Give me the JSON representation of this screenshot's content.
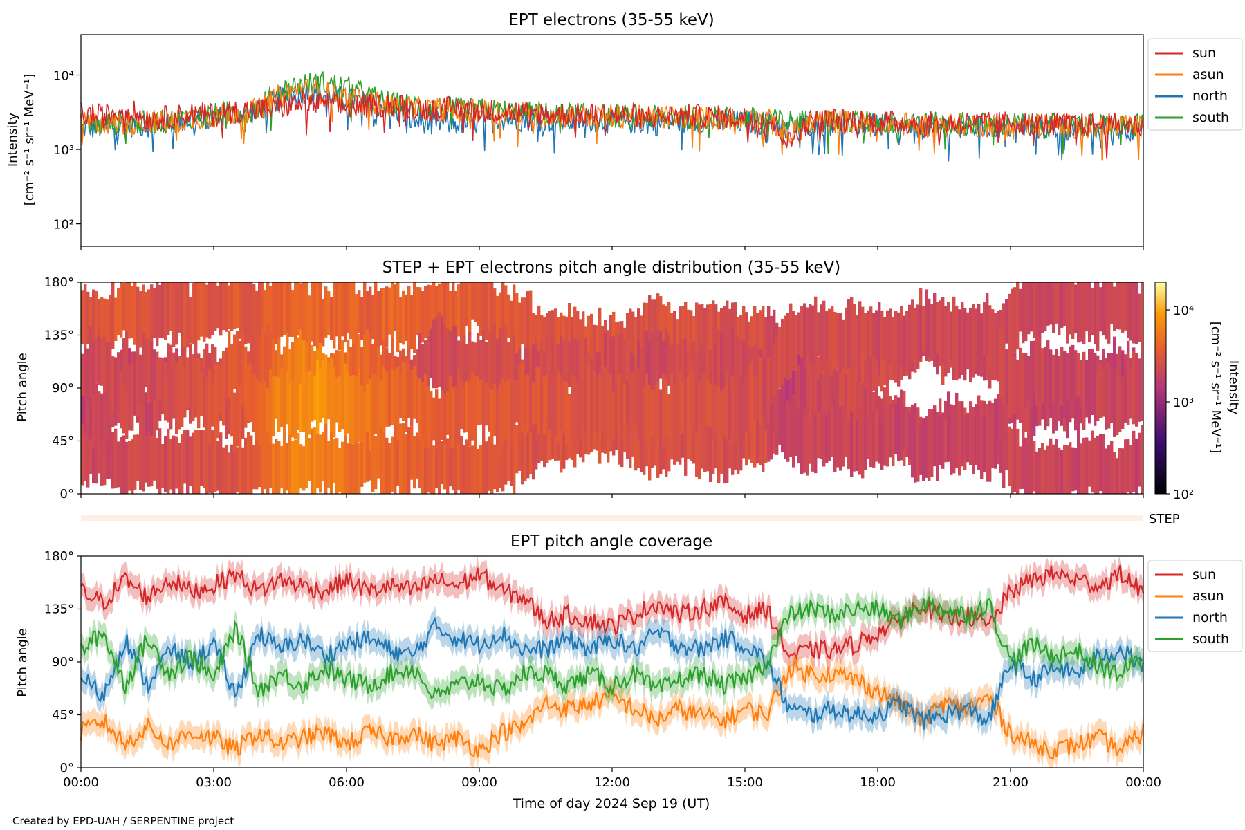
{
  "footer": "Created by EPD-UAH / SERPENTINE project",
  "xaxis": {
    "label": "Time of day 2024 Sep 19 (UT)",
    "ticks": [
      "00:00",
      "03:00",
      "06:00",
      "09:00",
      "12:00",
      "15:00",
      "18:00",
      "21:00",
      "00:00"
    ]
  },
  "colors": {
    "sun": "#d62728",
    "asun": "#ff7f0e",
    "north": "#1f77b4",
    "south": "#2ca02c"
  },
  "chart_data": [
    {
      "type": "line",
      "title": "EPT electrons (35-55 keV)",
      "ylabel_line1": "Intensity",
      "ylabel_line2": "[cm⁻² s⁻¹ sr⁻¹ MeV⁻¹]",
      "yscale": "log",
      "ylim": [
        50,
        35000
      ],
      "yticks": [
        {
          "value": 100,
          "label": "10²"
        },
        {
          "value": 1000,
          "label": "10³"
        },
        {
          "value": 10000,
          "label": "10⁴"
        }
      ],
      "xlim_hours": [
        0,
        24
      ],
      "x_hours": [
        0,
        0.5,
        1,
        1.5,
        2,
        2.5,
        3,
        3.5,
        4,
        4.5,
        5,
        5.5,
        6,
        6.5,
        7,
        7.5,
        8,
        8.5,
        9,
        9.5,
        10,
        10.5,
        11,
        11.5,
        12,
        12.5,
        13,
        13.5,
        14,
        14.5,
        15,
        15.5,
        16,
        16.5,
        17,
        17.5,
        18,
        18.5,
        19,
        19.5,
        20,
        20.5,
        21,
        21.5,
        22,
        22.5,
        23,
        23.5,
        24
      ],
      "legend": "upper right outside",
      "series": [
        {
          "name": "sun",
          "color": "#d62728",
          "values": [
            3000,
            2800,
            3500,
            2600,
            2700,
            3000,
            2900,
            3300,
            3400,
            3700,
            4200,
            4000,
            3700,
            3800,
            4100,
            3600,
            3500,
            3600,
            3400,
            3300,
            3100,
            3000,
            2950,
            2900,
            2900,
            2850,
            2800,
            2800,
            2800,
            2700,
            2650,
            2600,
            1200,
            2400,
            2500,
            2500,
            2350,
            2300,
            2250,
            2200,
            2300,
            2200,
            2300,
            2250,
            2200,
            2150,
            2150,
            2150,
            2100
          ]
        },
        {
          "name": "asun",
          "color": "#ff7f0e",
          "values": [
            2200,
            2300,
            2200,
            2400,
            2300,
            2600,
            2800,
            3100,
            3400,
            5200,
            6500,
            5800,
            5000,
            4400,
            3900,
            3600,
            3400,
            3300,
            3300,
            3200,
            3000,
            2900,
            2850,
            2800,
            2800,
            2750,
            2700,
            2700,
            2650,
            2600,
            2550,
            2500,
            1500,
            2300,
            2400,
            2300,
            2250,
            2200,
            2150,
            2100,
            2150,
            2100,
            2150,
            2100,
            2100,
            2050,
            2000,
            2000,
            2000
          ]
        },
        {
          "name": "north",
          "color": "#1f77b4",
          "values": [
            1900,
            2000,
            2100,
            2100,
            2200,
            2500,
            2700,
            3000,
            3200,
            4800,
            5900,
            5400,
            4700,
            4100,
            3600,
            2400,
            2300,
            2200,
            2300,
            2600,
            2500,
            2500,
            2400,
            2500,
            2300,
            2300,
            2200,
            2400,
            2400,
            2300,
            2300,
            2200,
            2100,
            2200,
            2200,
            2100,
            2100,
            2000,
            2000,
            2000,
            2000,
            2000,
            2000,
            1950,
            1900,
            1900,
            1900,
            1900,
            1900
          ]
        },
        {
          "name": "south",
          "color": "#2ca02c",
          "values": [
            2100,
            2200,
            2300,
            2300,
            2400,
            2700,
            2900,
            3200,
            3500,
            6000,
            7500,
            7800,
            6800,
            5200,
            4200,
            3900,
            3700,
            3500,
            3400,
            3300,
            3100,
            3000,
            2900,
            2900,
            2800,
            2800,
            2700,
            2750,
            2700,
            2650,
            2600,
            2500,
            2400,
            2400,
            2450,
            2350,
            2300,
            2250,
            2200,
            2200,
            2250,
            2150,
            2200,
            2150,
            2100,
            2100,
            2050,
            2100,
            2050
          ]
        }
      ]
    },
    {
      "type": "heatmap",
      "title": "STEP + EPT electrons pitch angle distribution (35-55 keV)",
      "ylabel": "Pitch angle",
      "ylim": [
        0,
        180
      ],
      "yticks": [
        "0°",
        "45°",
        "90°",
        "135°",
        "180°"
      ],
      "xlim_hours": [
        0,
        24
      ],
      "colorbar": {
        "label_line1": "Intensity",
        "label_line2": "[cm⁻² s⁻¹ sr⁻¹ MeV⁻¹]",
        "scale": "log",
        "range": [
          100,
          20000
        ],
        "ticks": [
          "10²",
          "10³",
          "10⁴"
        ]
      },
      "step_label": "STEP"
    },
    {
      "type": "line",
      "title": "EPT pitch angle coverage",
      "ylabel": "Pitch angle",
      "ylim": [
        0,
        180
      ],
      "yticks": [
        "0°",
        "45°",
        "90°",
        "135°",
        "180°"
      ],
      "xlim_hours": [
        0,
        24
      ],
      "x_hours": [
        0,
        0.5,
        1,
        1.5,
        2,
        2.5,
        3,
        3.5,
        4,
        4.5,
        5,
        5.5,
        6,
        6.5,
        7,
        7.5,
        8,
        8.5,
        9,
        9.5,
        10,
        10.5,
        11,
        11.5,
        12,
        12.5,
        13,
        13.5,
        14,
        14.5,
        15,
        15.5,
        16,
        16.5,
        17,
        17.5,
        18,
        18.5,
        19,
        19.5,
        20,
        20.5,
        21,
        21.5,
        22,
        22.5,
        23,
        23.5,
        24
      ],
      "band_halfwidth_deg": 10,
      "legend": "upper right outside",
      "series": [
        {
          "name": "sun",
          "color": "#d62728",
          "values": [
            150,
            140,
            160,
            145,
            160,
            150,
            155,
            165,
            150,
            160,
            155,
            150,
            160,
            150,
            155,
            150,
            160,
            155,
            165,
            150,
            145,
            125,
            130,
            125,
            120,
            130,
            140,
            130,
            135,
            140,
            130,
            135,
            95,
            100,
            100,
            105,
            115,
            125,
            140,
            125,
            130,
            120,
            150,
            160,
            165,
            160,
            155,
            165,
            150
          ]
        },
        {
          "name": "asun",
          "color": "#ff7f0e",
          "values": [
            30,
            40,
            20,
            35,
            20,
            30,
            25,
            15,
            30,
            20,
            25,
            30,
            20,
            30,
            25,
            30,
            20,
            25,
            15,
            30,
            35,
            55,
            50,
            55,
            60,
            50,
            40,
            50,
            45,
            40,
            50,
            45,
            85,
            80,
            80,
            75,
            65,
            55,
            40,
            55,
            50,
            60,
            30,
            20,
            15,
            20,
            25,
            15,
            30
          ]
        },
        {
          "name": "north",
          "color": "#1f77b4",
          "values": [
            80,
            60,
            110,
            70,
            100,
            90,
            105,
            60,
            115,
            100,
            110,
            95,
            105,
            110,
            100,
            95,
            120,
            110,
            105,
            115,
            100,
            100,
            110,
            100,
            110,
            100,
            115,
            105,
            100,
            110,
            105,
            90,
            50,
            45,
            50,
            45,
            45,
            55,
            40,
            45,
            50,
            40,
            90,
            75,
            85,
            80,
            95,
            100,
            85
          ]
        },
        {
          "name": "south",
          "color": "#2ca02c",
          "values": [
            100,
            115,
            70,
            110,
            80,
            95,
            75,
            120,
            65,
            80,
            70,
            85,
            75,
            70,
            80,
            85,
            60,
            70,
            75,
            65,
            80,
            80,
            70,
            80,
            70,
            80,
            65,
            75,
            80,
            70,
            75,
            90,
            130,
            135,
            130,
            135,
            135,
            125,
            140,
            135,
            130,
            140,
            90,
            105,
            95,
            100,
            85,
            80,
            95
          ]
        }
      ]
    }
  ]
}
